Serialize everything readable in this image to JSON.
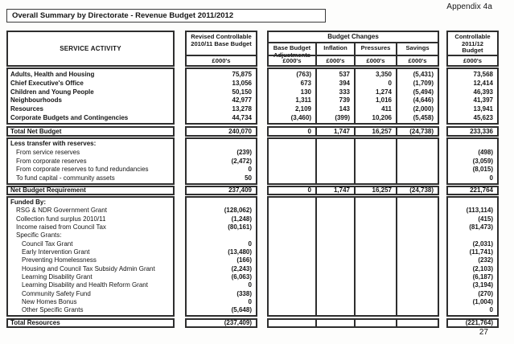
{
  "page": {
    "appendix_label": "Appendix 4a",
    "page_number": "27"
  },
  "title": "Overall Summary by Directorate - Revenue Budget  2011/2012",
  "header": {
    "service_activity": "SERVICE ACTIVITY",
    "revised_line1": "Revised Controllable",
    "revised_line2": "2010/11 Base Budget",
    "budget_changes": "Budget Changes",
    "col_adj_line1": "Base Budget",
    "col_adj_line2": "Adjustments",
    "col_inflation": "Inflation",
    "col_pressures": "Pressures",
    "col_savings": "Savings",
    "controllable_line1": "Controllable",
    "controllable_line2": "2011/12",
    "controllable_line3": "Budget",
    "units": "£000's"
  },
  "table": {
    "sections": [
      {
        "name": "directorates",
        "rows": [
          {
            "label": "Adults, Health and Housing",
            "indent": 0,
            "bold": true,
            "values": {
              "base": "75,875",
              "adj": "(763)",
              "infl": "537",
              "pres": "3,350",
              "sav": "(5,431)",
              "final": "73,568"
            }
          },
          {
            "label": "Chief Executive's Office",
            "indent": 0,
            "bold": true,
            "values": {
              "base": "13,056",
              "adj": "673",
              "infl": "394",
              "pres": "0",
              "sav": "(1,709)",
              "final": "12,414"
            }
          },
          {
            "label": "Children and Young People",
            "indent": 0,
            "bold": true,
            "values": {
              "base": "50,150",
              "adj": "130",
              "infl": "333",
              "pres": "1,274",
              "sav": "(5,494)",
              "final": "46,393"
            }
          },
          {
            "label": "Neighbourhoods",
            "indent": 0,
            "bold": true,
            "values": {
              "base": "42,977",
              "adj": "1,311",
              "infl": "739",
              "pres": "1,016",
              "sav": "(4,646)",
              "final": "41,397"
            }
          },
          {
            "label": "Resources",
            "indent": 0,
            "bold": true,
            "values": {
              "base": "13,278",
              "adj": "2,109",
              "infl": "143",
              "pres": "411",
              "sav": "(2,000)",
              "final": "13,941"
            }
          },
          {
            "label": "Corporate Budgets and Contingencies",
            "indent": 0,
            "bold": true,
            "values": {
              "base": "44,734",
              "adj": "(3,460)",
              "infl": "(399)",
              "pres": "10,206",
              "sav": "(5,458)",
              "final": "45,623"
            }
          }
        ]
      },
      {
        "name": "total-net-budget",
        "rows": [
          {
            "label": "Total Net Budget",
            "indent": 0,
            "bold": true,
            "values": {
              "base": "240,070",
              "adj": "0",
              "infl": "1,747",
              "pres": "16,257",
              "sav": "(24,738)",
              "final": "233,336"
            }
          }
        ]
      },
      {
        "name": "reserves",
        "rows": [
          {
            "label": "Less transfer with reserves:",
            "indent": 0,
            "bold": true,
            "values": {}
          },
          {
            "label": "From service reserves",
            "indent": 1,
            "bold": false,
            "values": {
              "base": "(239)",
              "final": "(498)"
            }
          },
          {
            "label": "From corporate reserves",
            "indent": 1,
            "bold": false,
            "values": {
              "base": "(2,472)",
              "final": "(3,059)"
            }
          },
          {
            "label": "From corporate reserves to fund redundancies",
            "indent": 1,
            "bold": false,
            "values": {
              "base": "0",
              "final": "(8,015)"
            }
          },
          {
            "label": "To fund capital - community assets",
            "indent": 1,
            "bold": false,
            "values": {
              "base": "50",
              "final": "0"
            }
          }
        ]
      },
      {
        "name": "net-budget-requirement",
        "rows": [
          {
            "label": "Net Budget Requirement",
            "indent": 0,
            "bold": true,
            "values": {
              "base": "237,409",
              "adj": "0",
              "infl": "1,747",
              "pres": "16,257",
              "sav": "(24,738)",
              "final": "221,764"
            }
          }
        ]
      },
      {
        "name": "funded-by",
        "rows": [
          {
            "label": "Funded By:",
            "indent": 0,
            "bold": true,
            "values": {}
          },
          {
            "label": "RSG & NDR Government Grant",
            "indent": 1,
            "bold": false,
            "values": {
              "base": "(128,062)",
              "final": "(113,114)"
            }
          },
          {
            "label": "Collection fund surplus 2010/11",
            "indent": 1,
            "bold": false,
            "values": {
              "base": "(1,248)",
              "final": "(415)"
            }
          },
          {
            "label": "Income raised from Council Tax",
            "indent": 1,
            "bold": false,
            "values": {
              "base": "(80,161)",
              "final": "(81,473)"
            }
          },
          {
            "label": "Specific Grants:",
            "indent": 1,
            "bold": false,
            "values": {}
          },
          {
            "label": "Council Tax Grant",
            "indent": 2,
            "bold": false,
            "values": {
              "base": "0",
              "final": "(2,031)"
            }
          },
          {
            "label": "Early Intervention Grant",
            "indent": 2,
            "bold": false,
            "values": {
              "base": "(13,480)",
              "final": "(11,741)"
            }
          },
          {
            "label": "Preventing Homelessness",
            "indent": 2,
            "bold": false,
            "values": {
              "base": "(166)",
              "final": "(232)"
            }
          },
          {
            "label": "Housing and Council Tax Subsidy Admin Grant",
            "indent": 2,
            "bold": false,
            "values": {
              "base": "(2,243)",
              "final": "(2,103)"
            }
          },
          {
            "label": "Learning Disability Grant",
            "indent": 2,
            "bold": false,
            "values": {
              "base": "(6,063)",
              "final": "(6,187)"
            }
          },
          {
            "label": "Learning Disability and Health Reform Grant",
            "indent": 2,
            "bold": false,
            "values": {
              "base": "0",
              "final": "(3,194)"
            }
          },
          {
            "label": "Community Safety Fund",
            "indent": 2,
            "bold": false,
            "values": {
              "base": "(338)",
              "final": "(270)"
            }
          },
          {
            "label": "New Homes Bonus",
            "indent": 2,
            "bold": false,
            "values": {
              "base": "0",
              "final": "(1,004)"
            }
          },
          {
            "label": "Other Specific Grants",
            "indent": 2,
            "bold": false,
            "values": {
              "base": "(5,648)",
              "final": "0"
            }
          }
        ]
      },
      {
        "name": "total-resources",
        "rows": [
          {
            "label": "Total Resources",
            "indent": 0,
            "bold": true,
            "values": {
              "base": "(237,409)",
              "final": "(221,764)"
            }
          }
        ]
      }
    ]
  }
}
